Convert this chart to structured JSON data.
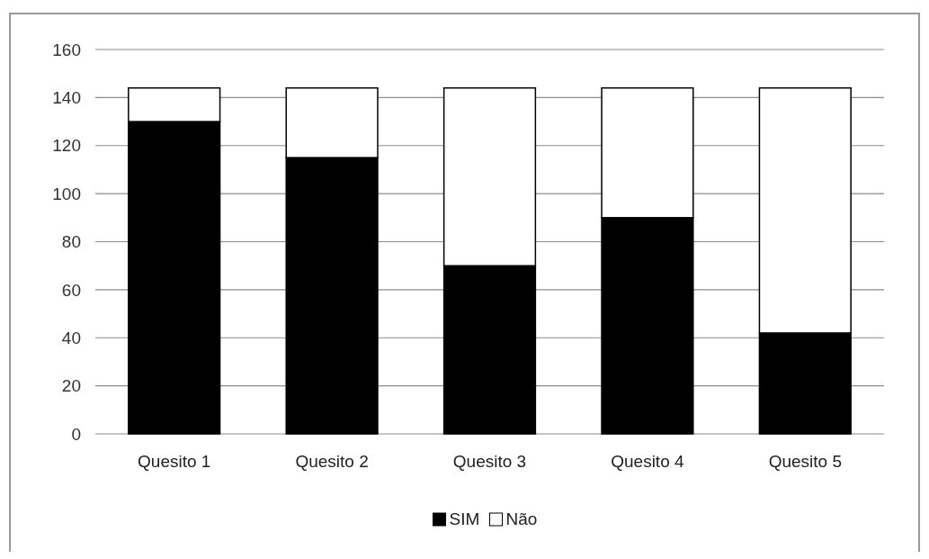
{
  "chart_data": {
    "type": "bar",
    "stacked": true,
    "categories": [
      "Quesito 1",
      "Quesito 2",
      "Quesito 3",
      "Quesito 4",
      "Quesito 5"
    ],
    "series": [
      {
        "name": "SIM",
        "color": "#000000",
        "values": [
          130,
          115,
          70,
          90,
          42
        ]
      },
      {
        "name": "Não",
        "color": "#ffffff",
        "values": [
          14,
          29,
          74,
          54,
          102
        ]
      }
    ],
    "ylim": [
      0,
      160
    ],
    "yticks": [
      0,
      20,
      40,
      60,
      80,
      100,
      120,
      140,
      160
    ],
    "grid": "y",
    "legend": "bottom"
  }
}
